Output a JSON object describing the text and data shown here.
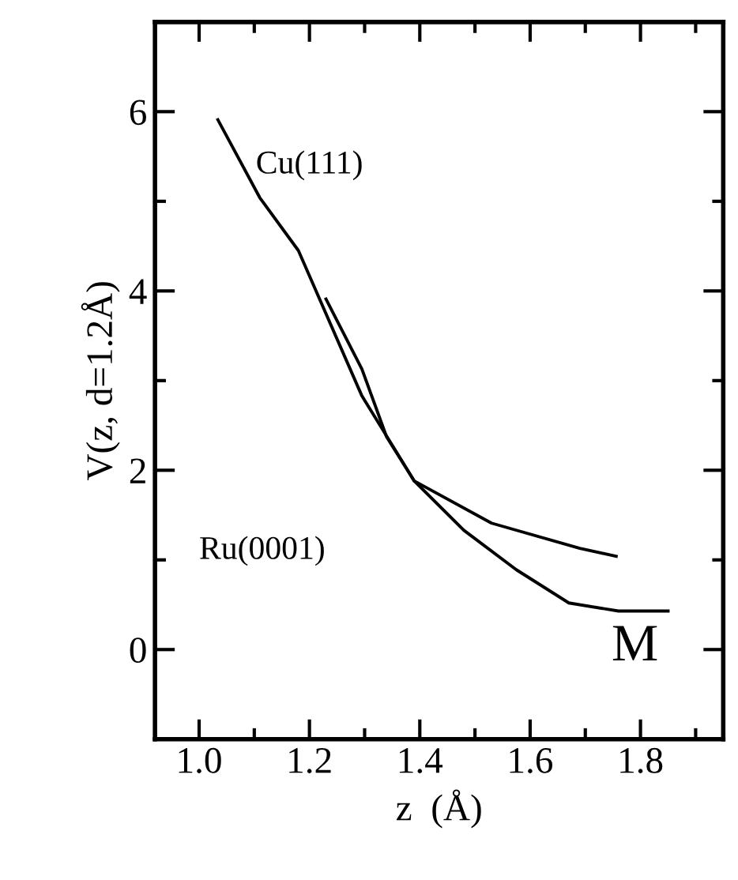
{
  "chart_data": {
    "type": "line",
    "xlabel": "z  (Å)",
    "ylabel": "V(z, d=1.2Å)",
    "annotations": [
      "Cu(111)",
      "Ru(0001)",
      "M"
    ],
    "series": [
      {
        "color": "#000000",
        "x": [
          1.034,
          1.11,
          1.18,
          1.295,
          1.39,
          1.53,
          1.69,
          1.756
        ],
        "values": [
          5.91,
          5.04,
          4.45,
          2.83,
          1.88,
          1.41,
          1.13,
          1.04
        ]
      },
      {
        "color": "#000000",
        "x": [
          1.23,
          1.295,
          1.34,
          1.39,
          1.48,
          1.575,
          1.67,
          1.76,
          1.85
        ],
        "values": [
          3.91,
          3.13,
          2.37,
          1.88,
          1.33,
          0.89,
          0.52,
          0.43,
          0.43
        ]
      }
    ],
    "xlim": [
      0.92,
      1.95
    ],
    "ylim": [
      -1,
      7
    ],
    "xticks": [
      {
        "value": 1.0,
        "label": "1.0"
      },
      {
        "value": 1.1,
        "label": null
      },
      {
        "value": 1.2,
        "label": "1.2"
      },
      {
        "value": 1.3,
        "label": null
      },
      {
        "value": 1.4,
        "label": "1.4"
      },
      {
        "value": 1.5,
        "label": null
      },
      {
        "value": 1.6,
        "label": "1.6"
      },
      {
        "value": 1.7,
        "label": null
      },
      {
        "value": 1.8,
        "label": "1.8"
      },
      {
        "value": 1.9,
        "label": null
      }
    ],
    "yticks": [
      {
        "value": -1,
        "label": null
      },
      0,
      {
        "value": 1,
        "label": null
      },
      2,
      {
        "value": 3,
        "label": null
      },
      4,
      {
        "value": 5,
        "label": null
      },
      6
    ],
    "grid": false,
    "legend": false,
    "marker": "none",
    "line_style": "solid"
  }
}
